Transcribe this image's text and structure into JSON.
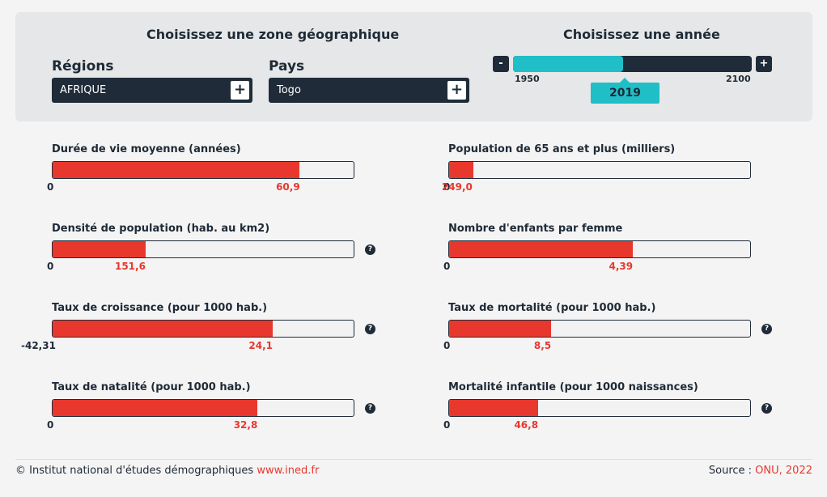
{
  "zone": {
    "title": "Choisissez une zone géographique",
    "regions_label": "Régions",
    "region_value": "AFRIQUE",
    "pays_label": "Pays",
    "pays_value": "Togo",
    "plus_symbol": "+"
  },
  "year": {
    "title": "Choisissez une année",
    "minus_symbol": "-",
    "plus_symbol": "+",
    "min": "1950",
    "max": "2100",
    "value": "2019",
    "min_num": 1950,
    "max_num": 2100,
    "value_num": 2019
  },
  "help_symbol": "?",
  "indicators": [
    {
      "title": "Durée de vie moyenne (années)",
      "min": "0",
      "value": "60,9",
      "fraction": 0.82,
      "help": false
    },
    {
      "title": "Population de 65 ans et plus (milliers)",
      "min": "0",
      "value": "249,0",
      "fraction": 0.08,
      "help": false
    },
    {
      "title": "Densité de population (hab. au km2)",
      "min": "0",
      "value": "151,6",
      "fraction": 0.31,
      "help": true
    },
    {
      "title": "Nombre d'enfants par femme",
      "min": "0",
      "value": "4,39",
      "fraction": 0.61,
      "help": false
    },
    {
      "title": "Taux de croissance (pour 1000 hab.)",
      "min": "-42,31",
      "value": "24,1",
      "fraction": 0.73,
      "help": true
    },
    {
      "title": "Taux de mortalité (pour 1000 hab.)",
      "min": "0",
      "value": "8,5",
      "fraction": 0.34,
      "help": true
    },
    {
      "title": "Taux de natalité (pour 1000 hab.)",
      "min": "0",
      "value": "32,8",
      "fraction": 0.68,
      "help": true
    },
    {
      "title": "Mortalité infantile (pour 1000 naissances)",
      "min": "0",
      "value": "46,8",
      "fraction": 0.297,
      "help": true
    }
  ],
  "footer": {
    "copyright": "© Institut national d'études démographiques ",
    "site": "www.ined.fr",
    "source_label": "Source : ",
    "source_value": "ONU, 2022"
  },
  "colors": {
    "accent": "#20bec6",
    "bar": "#e8382e",
    "dark": "#1f2b38"
  }
}
